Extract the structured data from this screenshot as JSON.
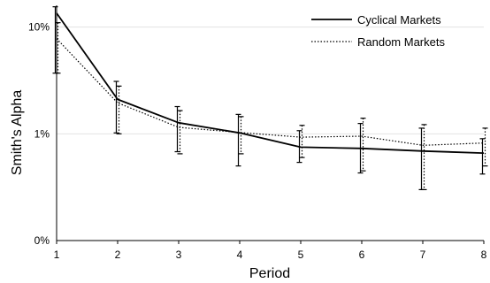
{
  "chart_data": {
    "type": "line",
    "title": "",
    "xlabel": "Period",
    "ylabel": "Smith's Alpha",
    "x": [
      1,
      2,
      3,
      4,
      5,
      6,
      7,
      8
    ],
    "xlim": [
      1,
      8
    ],
    "y_scale": "log",
    "ylim": [
      0.001,
      0.16
    ],
    "y_ticks": [
      {
        "value": 0.001,
        "label": "0%"
      },
      {
        "value": 0.01,
        "label": "1%"
      },
      {
        "value": 0.1,
        "label": "10%"
      }
    ],
    "grid": {
      "horizontal": true,
      "vertical": false
    },
    "legend": {
      "position": "top-right"
    },
    "series": [
      {
        "name": "Cyclical Markets",
        "style": "solid",
        "color": "#000000",
        "values": [
          0.135,
          0.021,
          0.0127,
          0.0102,
          0.0075,
          0.0073,
          0.0069,
          0.0066
        ],
        "error_low": [
          0.037,
          0.0102,
          0.0068,
          0.005,
          0.0054,
          0.0043,
          0.003,
          0.0042
        ],
        "error_high": [
          0.155,
          0.031,
          0.018,
          0.0152,
          0.0107,
          0.0125,
          0.0113,
          0.009
        ]
      },
      {
        "name": "Random Markets",
        "style": "dotted",
        "color": "#000000",
        "values": [
          0.078,
          0.0195,
          0.0115,
          0.0103,
          0.0093,
          0.0095,
          0.0078,
          0.0082
        ],
        "error_low": [
          0.037,
          0.01,
          0.0065,
          0.0065,
          0.006,
          0.0045,
          0.003,
          0.005
        ],
        "error_high": [
          0.11,
          0.028,
          0.0165,
          0.0145,
          0.012,
          0.014,
          0.0122,
          0.0113
        ]
      }
    ]
  }
}
